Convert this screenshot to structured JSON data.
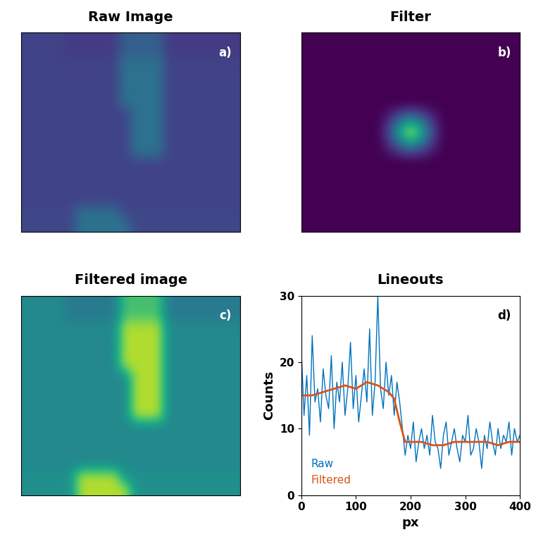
{
  "chart_data": [
    {
      "type": "heatmap",
      "title": "Raw Image",
      "annotation": "a)",
      "tick_labels": false,
      "color_range": [
        0,
        40
      ],
      "cells": [
        [
          8,
          8,
          8,
          8,
          7,
          7,
          7,
          7,
          7,
          12,
          12,
          12,
          12,
          7,
          7,
          7,
          7,
          7,
          7,
          7
        ],
        [
          8,
          8,
          8,
          8,
          7,
          7,
          7,
          7,
          7,
          12,
          12,
          12,
          12,
          7,
          7,
          7,
          7,
          7,
          7,
          7
        ],
        [
          8,
          8,
          8,
          8,
          8,
          8,
          8,
          8,
          8,
          15,
          15,
          15,
          15,
          8,
          8,
          8,
          8,
          8,
          8,
          8
        ],
        [
          8,
          8,
          8,
          8,
          8,
          8,
          8,
          8,
          8,
          15,
          15,
          15,
          15,
          8,
          8,
          8,
          8,
          8,
          8,
          8
        ],
        [
          8,
          8,
          8,
          8,
          8,
          8,
          8,
          8,
          8,
          15,
          15,
          15,
          15,
          8,
          8,
          8,
          8,
          8,
          8,
          8
        ],
        [
          8,
          8,
          8,
          8,
          8,
          8,
          8,
          8,
          8,
          15,
          15,
          15,
          15,
          8,
          8,
          8,
          8,
          8,
          8,
          8
        ],
        [
          8,
          8,
          8,
          8,
          8,
          8,
          8,
          8,
          8,
          8,
          15,
          15,
          15,
          8,
          8,
          8,
          8,
          8,
          8,
          8
        ],
        [
          8,
          8,
          8,
          8,
          8,
          8,
          8,
          8,
          8,
          8,
          15,
          15,
          15,
          8,
          8,
          8,
          8,
          8,
          8,
          8
        ],
        [
          8,
          8,
          8,
          8,
          8,
          8,
          8,
          8,
          8,
          8,
          15,
          15,
          15,
          8,
          8,
          8,
          8,
          8,
          8,
          8
        ],
        [
          8,
          8,
          8,
          8,
          8,
          8,
          8,
          8,
          8,
          8,
          15,
          15,
          15,
          8,
          8,
          8,
          8,
          8,
          8,
          8
        ],
        [
          8,
          8,
          8,
          8,
          8,
          8,
          8,
          8,
          8,
          8,
          8,
          8,
          8,
          8,
          8,
          8,
          8,
          8,
          8,
          8
        ],
        [
          8,
          8,
          8,
          8,
          8,
          8,
          8,
          8,
          8,
          8,
          8,
          8,
          8,
          8,
          8,
          8,
          8,
          8,
          8,
          8
        ],
        [
          8,
          8,
          8,
          8,
          8,
          8,
          8,
          8,
          8,
          8,
          8,
          8,
          8,
          8,
          8,
          8,
          8,
          8,
          8,
          8
        ],
        [
          8,
          8,
          8,
          8,
          8,
          8,
          8,
          8,
          8,
          8,
          8,
          8,
          8,
          8,
          8,
          8,
          8,
          8,
          8,
          8
        ],
        [
          8.5,
          8.5,
          8.5,
          8.5,
          8.5,
          15,
          15,
          15,
          15,
          8.5,
          8.5,
          8.5,
          8.5,
          8.5,
          8.5,
          8.5,
          8.5,
          8.5,
          8.5,
          8.5
        ],
        [
          8.5,
          8.5,
          8.5,
          8.5,
          8.5,
          15,
          15,
          15,
          15,
          15,
          8.5,
          8.5,
          8.5,
          8.5,
          8.5,
          8.5,
          8.5,
          8.5,
          8.5,
          8.5
        ]
      ]
    },
    {
      "type": "heatmap",
      "title": "Filter",
      "annotation": "b)",
      "tick_labels": false,
      "cells": [
        [
          0,
          0,
          0,
          0,
          0,
          0,
          0,
          0,
          0,
          0,
          0,
          0,
          0,
          0,
          0
        ],
        [
          0,
          0,
          0,
          0,
          0,
          0,
          0,
          0,
          0,
          0,
          0,
          0,
          0,
          0,
          0
        ],
        [
          0,
          0,
          0,
          0,
          0,
          0,
          0,
          0,
          0,
          0,
          0,
          0,
          0,
          0,
          0
        ],
        [
          0,
          0,
          0,
          0,
          0,
          0,
          0,
          0,
          0,
          0,
          0,
          0,
          0,
          0,
          0
        ],
        [
          0,
          0,
          0,
          0,
          0,
          0,
          0,
          0,
          0,
          0,
          0,
          0,
          0,
          0,
          0
        ],
        [
          0,
          0,
          0,
          0,
          0,
          0,
          0,
          0,
          0,
          0,
          0,
          0,
          0,
          0,
          0
        ],
        [
          0,
          0,
          0,
          0,
          0,
          0,
          0.25,
          0.5,
          0.25,
          0,
          0,
          0,
          0,
          0,
          0
        ],
        [
          0,
          0,
          0,
          0,
          0,
          0,
          0.5,
          1,
          0.5,
          0,
          0,
          0,
          0,
          0,
          0
        ],
        [
          0,
          0,
          0,
          0,
          0,
          0,
          0.25,
          0.5,
          0.25,
          0,
          0,
          0,
          0,
          0,
          0
        ],
        [
          0,
          0,
          0,
          0,
          0,
          0,
          0,
          0,
          0,
          0,
          0,
          0,
          0,
          0,
          0
        ],
        [
          0,
          0,
          0,
          0,
          0,
          0,
          0,
          0,
          0,
          0,
          0,
          0,
          0,
          0,
          0
        ],
        [
          0,
          0,
          0,
          0,
          0,
          0,
          0,
          0,
          0,
          0,
          0,
          0,
          0,
          0,
          0
        ],
        [
          0,
          0,
          0,
          0,
          0,
          0,
          0,
          0,
          0,
          0,
          0,
          0,
          0,
          0,
          0
        ],
        [
          0,
          0,
          0,
          0,
          0,
          0,
          0,
          0,
          0,
          0,
          0,
          0,
          0,
          0,
          0
        ],
        [
          0,
          0,
          0,
          0,
          0,
          0,
          0,
          0,
          0,
          0,
          0,
          0,
          0,
          0,
          0
        ]
      ]
    },
    {
      "type": "heatmap",
      "title": "Filtered image",
      "annotation": "c)",
      "tick_labels": false,
      "color_range": [
        0,
        17
      ],
      "cells": [
        [
          8,
          8,
          8,
          8,
          7,
          7,
          7,
          7,
          7,
          12,
          12,
          12,
          12,
          7,
          7,
          7,
          7,
          7,
          7,
          7
        ],
        [
          8,
          8,
          8,
          8,
          7,
          7,
          7,
          7,
          7,
          12,
          12,
          12,
          12,
          7,
          7,
          7,
          7,
          7,
          7,
          7
        ],
        [
          8,
          8,
          8,
          8,
          8,
          8,
          8,
          8,
          8,
          15,
          15,
          15,
          15,
          8,
          8,
          8,
          8,
          8,
          8,
          8
        ],
        [
          8,
          8,
          8,
          8,
          8,
          8,
          8,
          8,
          8,
          15,
          15,
          15,
          15,
          8,
          8,
          8,
          8,
          8,
          8,
          8
        ],
        [
          8,
          8,
          8,
          8,
          8,
          8,
          8,
          8,
          8,
          15,
          15,
          15,
          15,
          8,
          8,
          8,
          8,
          8,
          8,
          8
        ],
        [
          8,
          8,
          8,
          8,
          8,
          8,
          8,
          8,
          8,
          15,
          15,
          15,
          15,
          8,
          8,
          8,
          8,
          8,
          8,
          8
        ],
        [
          8,
          8,
          8,
          8,
          8,
          8,
          8,
          8,
          8,
          8,
          15,
          15,
          15,
          8,
          8,
          8,
          8,
          8,
          8,
          8
        ],
        [
          8,
          8,
          8,
          8,
          8,
          8,
          8,
          8,
          8,
          8,
          15,
          15,
          15,
          8,
          8,
          8,
          8,
          8,
          8,
          8
        ],
        [
          8,
          8,
          8,
          8,
          8,
          8,
          8,
          8,
          8,
          8,
          15,
          15,
          15,
          8,
          8,
          8,
          8,
          8,
          8,
          8
        ],
        [
          8,
          8,
          8,
          8,
          8,
          8,
          8,
          8,
          8,
          8,
          15,
          15,
          15,
          8,
          8,
          8,
          8,
          8,
          8,
          8
        ],
        [
          8,
          8,
          8,
          8,
          8,
          8,
          8,
          8,
          8,
          8,
          8,
          8,
          8,
          8,
          8,
          8,
          8,
          8,
          8,
          8
        ],
        [
          8,
          8,
          8,
          8,
          8,
          8,
          8,
          8,
          8,
          8,
          8,
          8,
          8,
          8,
          8,
          8,
          8,
          8,
          8,
          8
        ],
        [
          8,
          8,
          8,
          8,
          8,
          8,
          8,
          8,
          8,
          8,
          8,
          8,
          8,
          8,
          8,
          8,
          8,
          8,
          8,
          8
        ],
        [
          8,
          8,
          8,
          8,
          8,
          8,
          8,
          8,
          8,
          8,
          8,
          8,
          8,
          8,
          8,
          8,
          8,
          8,
          8,
          8
        ],
        [
          8.5,
          8.5,
          8.5,
          8.5,
          8.5,
          15,
          15,
          15,
          15,
          8.5,
          8.5,
          8.5,
          8.5,
          8.5,
          8.5,
          8.5,
          8.5,
          8.5,
          8.5,
          8.5
        ],
        [
          8.5,
          8.5,
          8.5,
          8.5,
          8.5,
          15,
          15,
          15,
          15,
          15,
          8.5,
          8.5,
          8.5,
          8.5,
          8.5,
          8.5,
          8.5,
          8.5,
          8.5,
          8.5
        ]
      ]
    },
    {
      "type": "line",
      "title": "Lineouts",
      "annotation": "d)",
      "xlabel": "px",
      "ylabel": "Counts",
      "xlim": [
        0,
        400
      ],
      "ylim": [
        0,
        30
      ],
      "xticks": [
        0,
        100,
        200,
        300,
        400
      ],
      "yticks": [
        0,
        10,
        20,
        30
      ],
      "legend": "lower left",
      "series": [
        {
          "name": "Raw",
          "color": "#0072bd",
          "x": [
            0,
            5,
            10,
            15,
            20,
            25,
            30,
            35,
            40,
            45,
            50,
            55,
            60,
            65,
            70,
            75,
            80,
            85,
            90,
            95,
            100,
            105,
            110,
            115,
            120,
            125,
            130,
            135,
            140,
            145,
            150,
            155,
            160,
            165,
            170,
            175,
            180,
            185,
            190,
            195,
            200,
            205,
            210,
            215,
            220,
            225,
            230,
            235,
            240,
            245,
            250,
            255,
            260,
            265,
            270,
            275,
            280,
            285,
            290,
            295,
            300,
            305,
            310,
            315,
            320,
            325,
            330,
            335,
            340,
            345,
            350,
            355,
            360,
            365,
            370,
            375,
            380,
            385,
            390,
            395,
            400
          ],
          "values": [
            22,
            12,
            18,
            9,
            24,
            14,
            16,
            11,
            19,
            15,
            13,
            21,
            10,
            17,
            14,
            20,
            12,
            16,
            23,
            13,
            18,
            11,
            15,
            19,
            14,
            25,
            12,
            17,
            30,
            16,
            13,
            20,
            15,
            18,
            12,
            17,
            14,
            10,
            6,
            9,
            7,
            11,
            5,
            8,
            10,
            7,
            9,
            6,
            12,
            8,
            7,
            4,
            9,
            11,
            6,
            8,
            10,
            7,
            5,
            9,
            8,
            12,
            6,
            7,
            10,
            8,
            4,
            9,
            7,
            11,
            8,
            6,
            10,
            7,
            9,
            8,
            11,
            6,
            10,
            8,
            9
          ]
        },
        {
          "name": "Filtered",
          "color": "#d95319",
          "x": [
            0,
            20,
            40,
            60,
            80,
            100,
            120,
            140,
            160,
            170,
            180,
            190,
            200,
            220,
            240,
            260,
            280,
            300,
            320,
            340,
            360,
            380,
            400
          ],
          "values": [
            15,
            15,
            15.5,
            16,
            16.5,
            16,
            17,
            16.5,
            15.5,
            14.5,
            11,
            8,
            8,
            8,
            7.5,
            7.5,
            8,
            8,
            8,
            8,
            7.5,
            8,
            8
          ]
        }
      ]
    }
  ]
}
